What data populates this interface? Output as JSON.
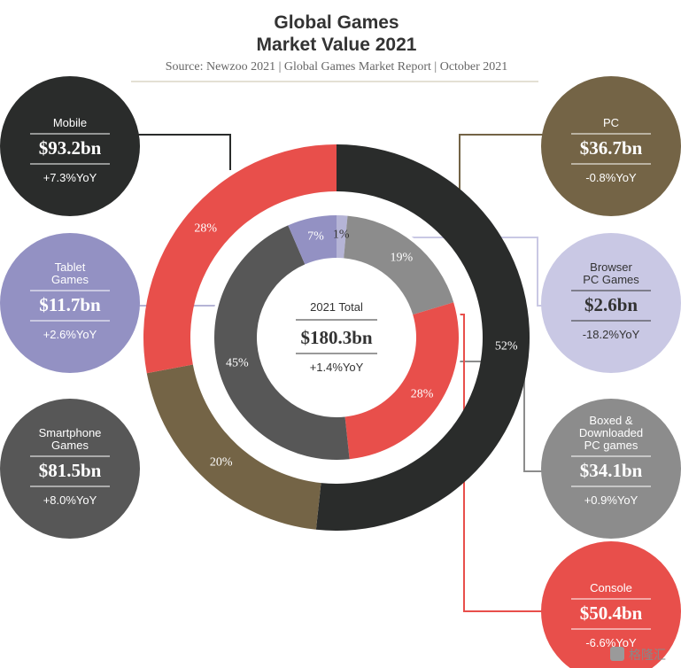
{
  "chart_data": {
    "type": "pie",
    "title": "Global Games",
    "title_line2": "Market Value 2021",
    "source": "Source: Newzoo 2021 | Global Games Market Report | October 2021",
    "center": {
      "label": "2021 Total",
      "value": "$180.3bn",
      "yoy": "+1.4%YoY"
    },
    "outer_ring": [
      {
        "name": "Mobile",
        "value_bn": 93.2,
        "percent": 52,
        "percent_label": "52%",
        "color": "#2a2c2b"
      },
      {
        "name": "PC",
        "value_bn": 36.7,
        "percent": 20,
        "percent_label": "20%",
        "color": "#746446"
      },
      {
        "name": "Console",
        "value_bn": 50.4,
        "percent": 28,
        "percent_label": "28%",
        "color": "#e84f4b"
      }
    ],
    "inner_ring": [
      {
        "name": "Browser PC Games",
        "value_bn": 2.6,
        "percent": 1,
        "percent_label": "1%",
        "color": "#b5b4d6"
      },
      {
        "name": "Boxed & Downloaded PC games",
        "value_bn": 34.1,
        "percent": 19,
        "percent_label": "19%",
        "color": "#8c8c8c"
      },
      {
        "name": "Console",
        "value_bn": 50.4,
        "percent": 28,
        "percent_label": "28%",
        "color": "#e84f4b"
      },
      {
        "name": "Smartphone Games",
        "value_bn": 81.5,
        "percent": 45,
        "percent_label": "45%",
        "color": "#575757"
      },
      {
        "name": "Tablet Games",
        "value_bn": 11.7,
        "percent": 7,
        "percent_label": "7%",
        "color": "#9391c3"
      }
    ],
    "callouts": [
      {
        "key": "mobile",
        "lines": [
          "Mobile"
        ],
        "value": "$93.2bn",
        "yoy": "+7.3%YoY",
        "color": "#2a2c2b",
        "text": "light"
      },
      {
        "key": "tablet",
        "lines": [
          "Tablet",
          "Games"
        ],
        "value": "$11.7bn",
        "yoy": "+2.6%YoY",
        "color": "#9391c3",
        "text": "light"
      },
      {
        "key": "smartphone",
        "lines": [
          "Smartphone",
          "Games"
        ],
        "value": "$81.5bn",
        "yoy": "+8.0%YoY",
        "color": "#575757",
        "text": "light"
      },
      {
        "key": "pc",
        "lines": [
          "PC"
        ],
        "value": "$36.7bn",
        "yoy": "-0.8%YoY",
        "color": "#746446",
        "text": "light"
      },
      {
        "key": "browser",
        "lines": [
          "Browser",
          "PC Games"
        ],
        "value": "$2.6bn",
        "yoy": "-18.2%YoY",
        "color": "#c9c8e4",
        "text": "dark"
      },
      {
        "key": "boxed",
        "lines": [
          "Boxed &",
          "Downloaded",
          "PC games"
        ],
        "value": "$34.1bn",
        "yoy": "+0.9%YoY",
        "color": "#8c8c8c",
        "text": "light"
      },
      {
        "key": "console",
        "lines": [
          "Console"
        ],
        "value": "$50.4bn",
        "yoy": "-6.6%YoY",
        "color": "#e84f4b",
        "text": "light"
      }
    ]
  },
  "watermark": "格隆汇"
}
